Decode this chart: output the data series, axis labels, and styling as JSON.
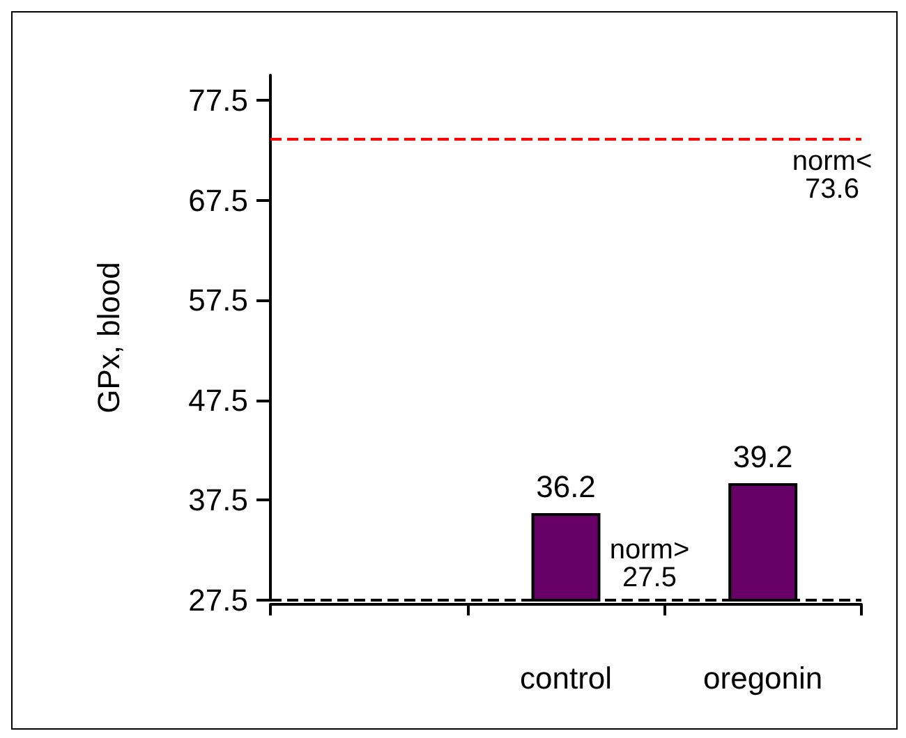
{
  "chart_data": {
    "type": "bar",
    "ylabel": "GPx, blood",
    "categories": [
      null,
      "control",
      "oregonin"
    ],
    "values": [
      null,
      36.2,
      39.2
    ],
    "color": "#660066",
    "data_labels": true,
    "ylim": [
      27.5,
      80
    ],
    "yticks": [
      27.5,
      37.5,
      47.5,
      57.5,
      67.5,
      77.5
    ],
    "grid": false,
    "ref_lines": [
      {
        "axis": "y",
        "value": 73.6,
        "label": "norm< 73.6",
        "color": "#ff0000",
        "line_style": "dashed"
      },
      {
        "axis": "y",
        "value": 27.5,
        "label": "norm> 27.5",
        "color": "#000000",
        "line_style": "dashed"
      }
    ]
  }
}
